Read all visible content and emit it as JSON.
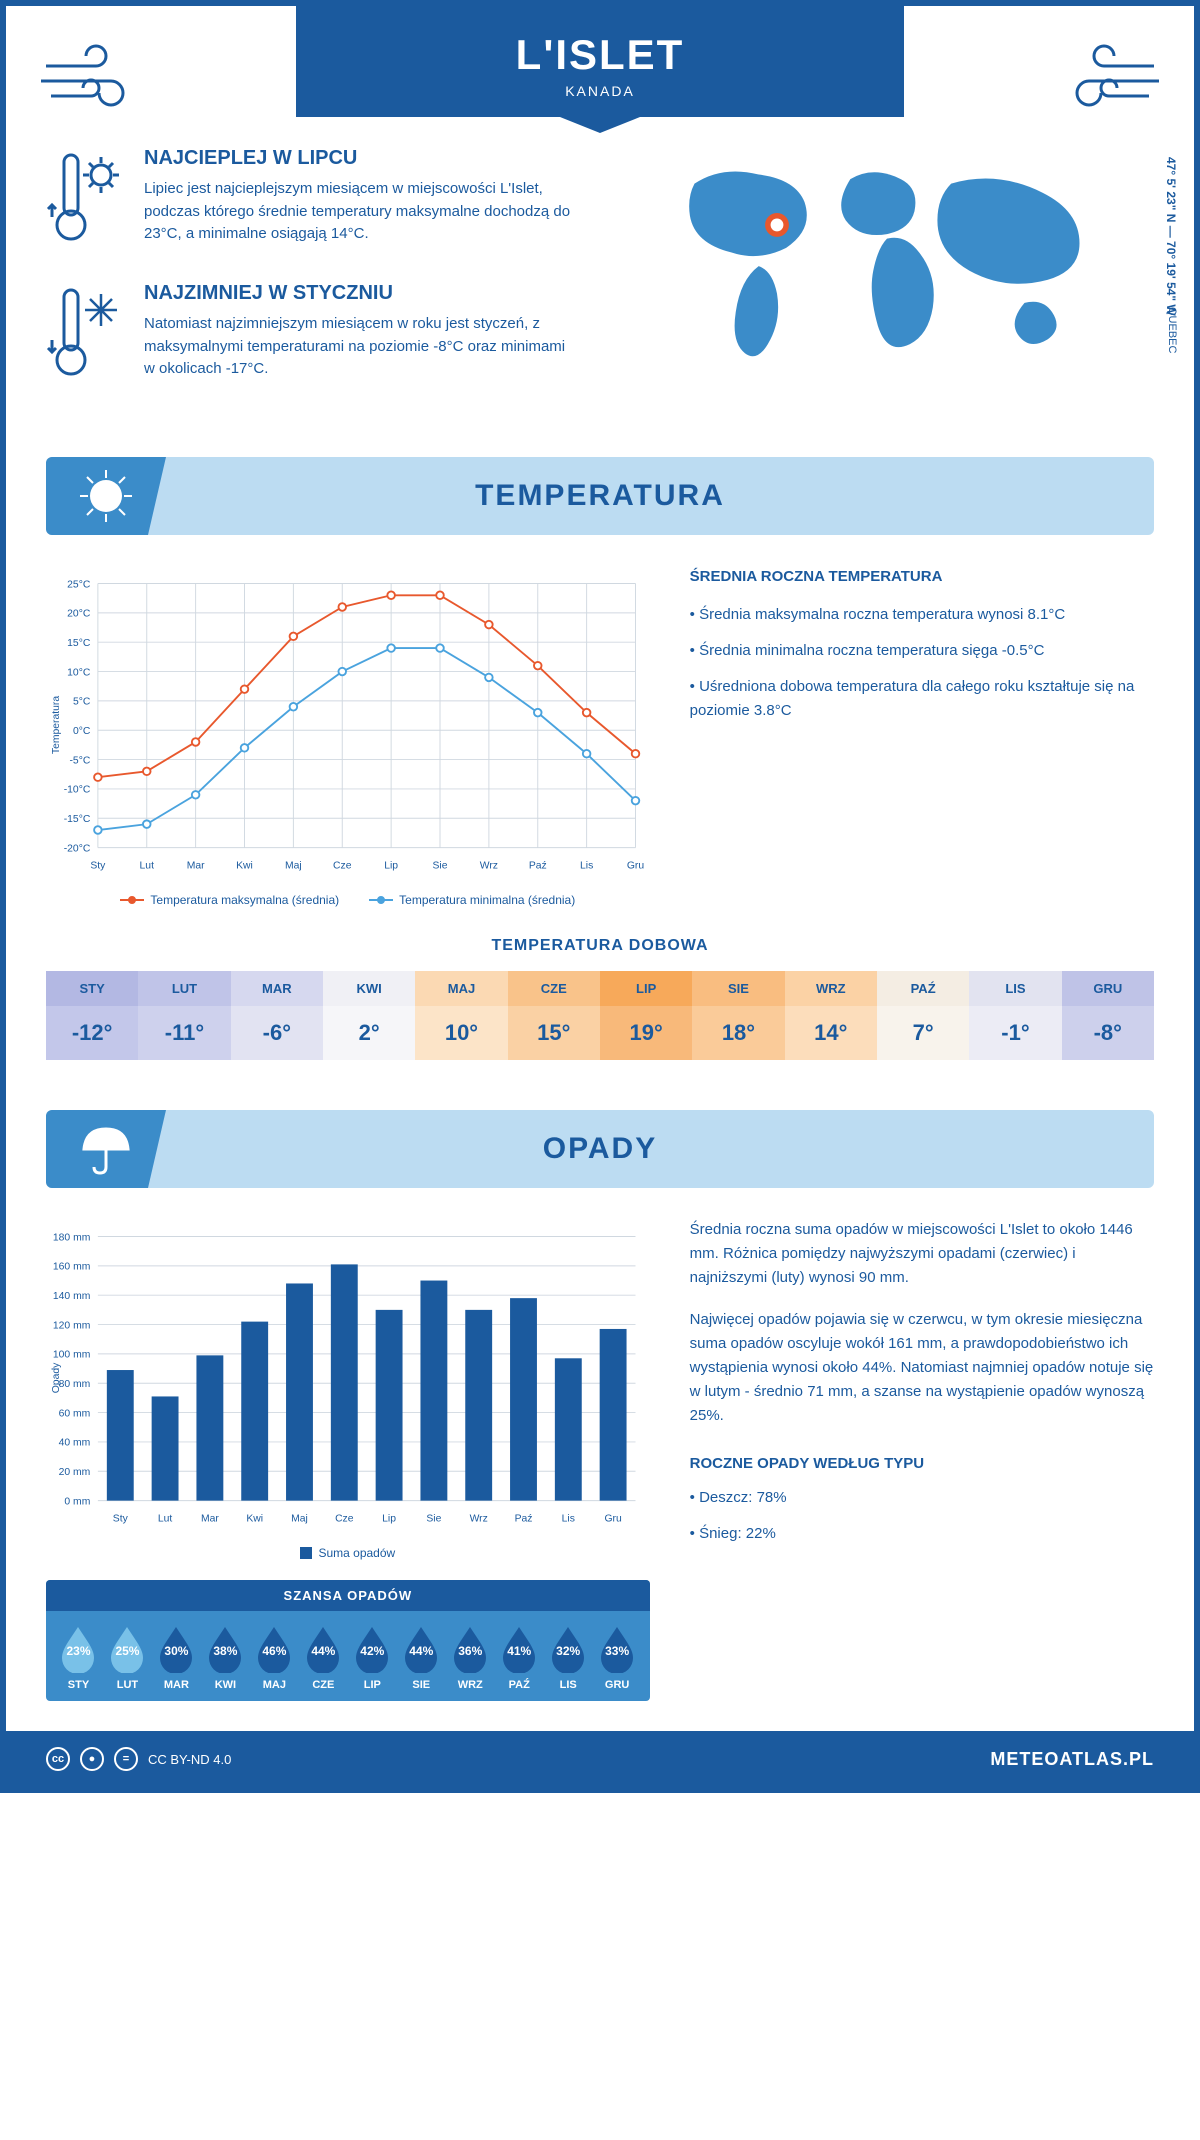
{
  "header": {
    "title": "L'ISLET",
    "subtitle": "KANADA"
  },
  "coords": "47° 5' 23\" N — 70° 19' 54\" W",
  "region": "QUEBEC",
  "warmest": {
    "title": "NAJCIEPLEJ W LIPCU",
    "text": "Lipiec jest najcieplejszym miesiącem w miejscowości L'Islet, podczas którego średnie temperatury maksymalne dochodzą do 23°C, a minimalne osiągają 14°C."
  },
  "coldest": {
    "title": "NAJZIMNIEJ W STYCZNIU",
    "text": "Natomiast najzimniejszym miesiącem w roku jest styczeń, z maksymalnymi temperaturami na poziomie -8°C oraz minimami w okolicach -17°C."
  },
  "temp_section": {
    "title": "TEMPERATURA"
  },
  "temp_chart": {
    "type": "line",
    "months": [
      "Sty",
      "Lut",
      "Mar",
      "Kwi",
      "Maj",
      "Cze",
      "Lip",
      "Sie",
      "Wrz",
      "Paź",
      "Lis",
      "Gru"
    ],
    "y_label": "Temperatura",
    "ylim": [
      -20,
      25
    ],
    "ytick_step": 5,
    "series": [
      {
        "name": "Temperatura maksymalna (średnia)",
        "color": "#e8582d",
        "values": [
          -8,
          -7,
          -2,
          7,
          16,
          21,
          23,
          23,
          18,
          11,
          3,
          -4
        ]
      },
      {
        "name": "Temperatura minimalna (średnia)",
        "color": "#4aa3de",
        "values": [
          -17,
          -16,
          -11,
          -3,
          4,
          10,
          14,
          14,
          9,
          3,
          -4,
          -12
        ]
      }
    ],
    "grid_color": "#d0d8e0",
    "background_color": "#ffffff",
    "marker": "circle",
    "marker_size": 4,
    "line_width": 2
  },
  "temp_annual": {
    "title": "ŚREDNIA ROCZNA TEMPERATURA",
    "bullets": [
      "• Średnia maksymalna roczna temperatura wynosi 8.1°C",
      "• Średnia minimalna roczna temperatura sięga -0.5°C",
      "• Uśredniona dobowa temperatura dla całego roku kształtuje się na poziomie 3.8°C"
    ]
  },
  "daily": {
    "title": "TEMPERATURA DOBOWA",
    "months": [
      "STY",
      "LUT",
      "MAR",
      "KWI",
      "MAJ",
      "CZE",
      "LIP",
      "SIE",
      "WRZ",
      "PAŹ",
      "LIS",
      "GRU"
    ],
    "values": [
      "-12°",
      "-11°",
      "-6°",
      "2°",
      "10°",
      "15°",
      "19°",
      "18°",
      "14°",
      "7°",
      "-1°",
      "-8°"
    ],
    "head_colors": [
      "#b3b8e3",
      "#c0c4e8",
      "#d6d8ef",
      "#f0f0f5",
      "#fbd9b3",
      "#f9c38a",
      "#f7a95a",
      "#f9bd80",
      "#fbd2a5",
      "#f4ede3",
      "#e2e3f0",
      "#bfc3e7"
    ],
    "val_colors": [
      "#c3c7ea",
      "#ced1ed",
      "#e2e3f2",
      "#f6f6f9",
      "#fce4c8",
      "#fad1a4",
      "#f8b97a",
      "#facb99",
      "#fcddbb",
      "#f8f3ec",
      "#ececf5",
      "#cdd0ec"
    ]
  },
  "precip_section": {
    "title": "OPADY"
  },
  "precip_chart": {
    "type": "bar",
    "months": [
      "Sty",
      "Lut",
      "Mar",
      "Kwi",
      "Maj",
      "Cze",
      "Lip",
      "Sie",
      "Wrz",
      "Paź",
      "Lis",
      "Gru"
    ],
    "y_label": "Opady",
    "ylim": [
      0,
      180
    ],
    "ytick_step": 20,
    "values": [
      89,
      71,
      99,
      122,
      148,
      161,
      130,
      150,
      130,
      138,
      97,
      117
    ],
    "bar_color": "#1b5a9e",
    "grid_color": "#d0d8e0",
    "legend": "Suma opadów"
  },
  "precip_text1": "Średnia roczna suma opadów w miejscowości L'Islet to około 1446 mm. Różnica pomiędzy najwyższymi opadami (czerwiec) i najniższymi (luty) wynosi 90 mm.",
  "precip_text2": "Najwięcej opadów pojawia się w czerwcu, w tym okresie miesięczna suma opadów oscyluje wokół 161 mm, a prawdopodobieństwo ich wystąpienia wynosi około 44%. Natomiast najmniej opadów notuje się w lutym - średnio 71 mm, a szanse na wystąpienie opadów wynoszą 25%.",
  "chance": {
    "title": "SZANSA OPADÓW",
    "months": [
      "STY",
      "LUT",
      "MAR",
      "KWI",
      "MAJ",
      "CZE",
      "LIP",
      "SIE",
      "WRZ",
      "PAŹ",
      "LIS",
      "GRU"
    ],
    "pct": [
      "23%",
      "25%",
      "30%",
      "38%",
      "46%",
      "44%",
      "42%",
      "44%",
      "36%",
      "41%",
      "32%",
      "33%"
    ],
    "drop_light": "#79c1e8",
    "drop_dark": "#1b5a9e",
    "threshold": 30
  },
  "precip_type": {
    "title": "ROCZNE OPADY WEDŁUG TYPU",
    "bullets": [
      "• Deszcz: 78%",
      "• Śnieg: 22%"
    ]
  },
  "footer": {
    "license": "CC BY-ND 4.0",
    "brand": "METEOATLAS.PL"
  }
}
